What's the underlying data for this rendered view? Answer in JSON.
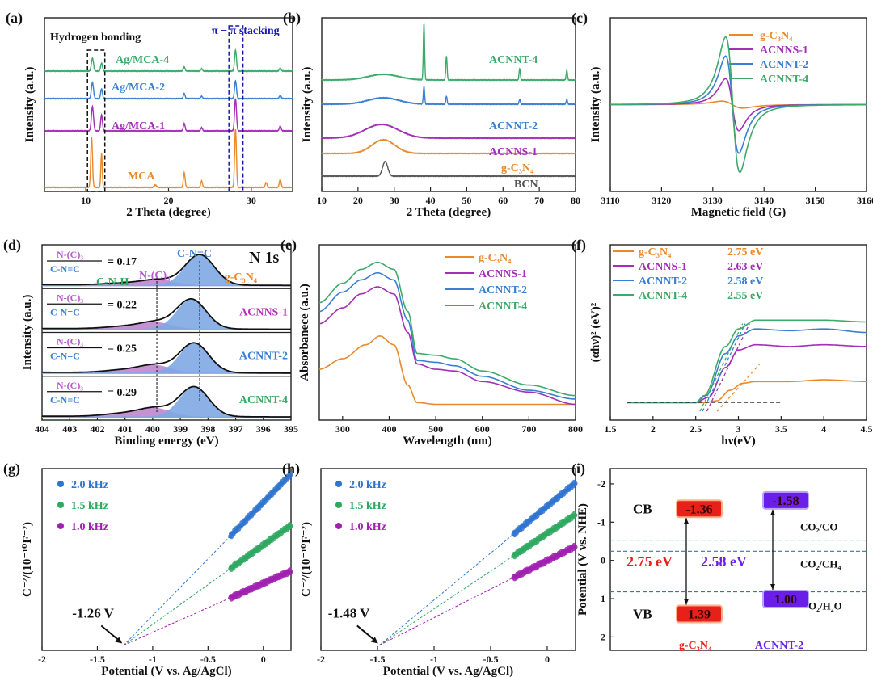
{
  "chart_data": [
    {
      "id": "a",
      "type": "line",
      "panel_label": "(a)",
      "xlabel": "2 Theta (degree)",
      "ylabel": "Intensity (a.u.)",
      "xlim": [
        5,
        35
      ],
      "ylim": [
        -5,
        210
      ],
      "xticks": [
        10,
        20,
        30
      ],
      "annotations": {
        "hbond": "Hydrogen bonding",
        "stacking": "π − π stacking"
      },
      "series": [
        {
          "name": "MCA",
          "color": "#e8892b",
          "offset": 0,
          "peaks": [
            [
              10.7,
              62,
              0.15
            ],
            [
              11.9,
              42,
              0.12
            ],
            [
              18.4,
              3,
              0.2
            ],
            [
              21.9,
              18,
              0.15
            ],
            [
              24.0,
              8,
              0.15
            ],
            [
              28.1,
              72,
              0.15
            ],
            [
              31.8,
              6,
              0.15
            ],
            [
              33.5,
              10,
              0.15
            ]
          ]
        },
        {
          "name": "Ag/MCA-1",
          "color": "#a22fb5",
          "offset": 70,
          "peaks": [
            [
              10.8,
              30,
              0.18
            ],
            [
              11.9,
              20,
              0.15
            ],
            [
              21.9,
              9,
              0.15
            ],
            [
              24.0,
              4,
              0.15
            ],
            [
              28.1,
              40,
              0.16
            ],
            [
              33.5,
              6,
              0.15
            ]
          ]
        },
        {
          "name": "Ag/MCA-2",
          "color": "#3a7fd0",
          "offset": 110,
          "peaks": [
            [
              10.8,
              20,
              0.18
            ],
            [
              11.9,
              12,
              0.15
            ],
            [
              21.9,
              6,
              0.15
            ],
            [
              24.0,
              3,
              0.15
            ],
            [
              28.1,
              22,
              0.16
            ],
            [
              33.5,
              4,
              0.15
            ]
          ]
        },
        {
          "name": "Ag/MCA-4",
          "color": "#3daa6a",
          "offset": 144,
          "peaks": [
            [
              10.8,
              16,
              0.18
            ],
            [
              11.9,
              10,
              0.15
            ],
            [
              21.9,
              5,
              0.15
            ],
            [
              24.0,
              3,
              0.15
            ],
            [
              28.1,
              26,
              0.16
            ],
            [
              33.5,
              4,
              0.15
            ]
          ]
        }
      ]
    },
    {
      "id": "b",
      "type": "line",
      "panel_label": "(b)",
      "xlabel": "2 Theta (degree)",
      "ylabel": "Intensity (a.u.)",
      "xlim": [
        10,
        80
      ],
      "ylim": [
        0,
        215
      ],
      "xticks": [
        10,
        20,
        30,
        40,
        50,
        60,
        70,
        80
      ],
      "series": [
        {
          "name": "BCN",
          "color": "#555555",
          "offset": 19,
          "peaks": [
            [
              27.5,
              18,
              1.0
            ]
          ]
        },
        {
          "name": "g-C₃N₄",
          "color": "#e8892b",
          "offset": 47,
          "peaks": [
            [
              27.0,
              17,
              4.5
            ]
          ]
        },
        {
          "name": "ACNNS-1",
          "color": "#a22fb5",
          "offset": 66,
          "peaks": [
            [
              26.5,
              17,
              6.5
            ]
          ]
        },
        {
          "name": "ACNNT-2",
          "color": "#3a7fd0",
          "offset": 108,
          "peaks": [
            [
              27,
              8,
              6
            ],
            [
              38.2,
              22,
              0.25
            ],
            [
              44.4,
              10,
              0.25
            ],
            [
              64.6,
              6,
              0.25
            ],
            [
              77.6,
              6,
              0.25
            ]
          ]
        },
        {
          "name": "ACNNT-4",
          "color": "#3daa6a",
          "offset": 138,
          "peaks": [
            [
              27,
              7,
              6
            ],
            [
              38.2,
              70,
              0.25
            ],
            [
              44.4,
              30,
              0.25
            ],
            [
              64.6,
              14,
              0.25
            ],
            [
              77.6,
              12,
              0.25
            ]
          ]
        }
      ]
    },
    {
      "id": "c",
      "type": "line",
      "panel_label": "(c)",
      "xlabel": "Magnetic field (G)",
      "ylabel": "Intensity (a.u.)",
      "xlim": [
        3110,
        3160
      ],
      "ylim": [
        -1,
        1
      ],
      "xticks": [
        3110,
        3120,
        3130,
        3140,
        3150,
        3160
      ],
      "series": [
        {
          "name": "g-C₃N₄",
          "color": "#e8892b",
          "center": 3133.8,
          "width": 3.5,
          "amp": 0.04
        },
        {
          "name": "ACNNS-1",
          "color": "#a22fb5",
          "center": 3133.8,
          "width": 2.25,
          "amp": 0.3
        },
        {
          "name": "ACNNT-2",
          "color": "#3a7fd0",
          "center": 3133.8,
          "width": 2.25,
          "amp": 0.56
        },
        {
          "name": "ACNNT-4",
          "color": "#3daa6a",
          "center": 3133.9,
          "width": 2.4,
          "amp": 0.78
        }
      ]
    },
    {
      "id": "d",
      "type": "area",
      "panel_label": "(d)",
      "xlabel": "Binding energy (eV)",
      "ylabel": "Intensity (a.u.)",
      "xlim": [
        404,
        395
      ],
      "ylim": [
        0,
        1
      ],
      "xticks": [
        404,
        403,
        402,
        401,
        400,
        399,
        398,
        397,
        396,
        395
      ],
      "title": "N 1s",
      "annotations": {
        "cnc": "C-N=C",
        "cnh": "C-N-H",
        "nc3": "N-(C)₃"
      },
      "fill_colors": {
        "main": "#7ea9e3",
        "minor": "#b777c9"
      },
      "series": [
        {
          "name": "g-C₃N₄",
          "color": "#e8892b",
          "numerator": "N-(C)₃",
          "denominator": "C-N=C",
          "ratio": "= 0.17",
          "main": [
            398.3,
            0.78,
            0.75
          ],
          "nc3": [
            399.8,
            0.13,
            0.8
          ],
          "cnh": [
            401.0,
            0.05,
            1.0
          ]
        },
        {
          "name": "ACNNS-1",
          "color": "#b52fb5",
          "numerator": "N-(C)₃",
          "denominator": "C-N=C",
          "ratio": "= 0.22",
          "main": [
            398.6,
            0.76,
            0.75
          ],
          "nc3": [
            399.9,
            0.16,
            0.8
          ],
          "cnh": [
            401.0,
            0.06,
            1.0
          ]
        },
        {
          "name": "ACNNT-2",
          "color": "#3a7fd0",
          "numerator": "N-(C)₃",
          "denominator": "C-N=C",
          "ratio": "= 0.25",
          "main": [
            398.5,
            0.76,
            0.75
          ],
          "nc3": [
            399.9,
            0.18,
            0.8
          ],
          "cnh": [
            401.0,
            0.07,
            1.0
          ]
        },
        {
          "name": "ACNNT-4",
          "color": "#3daa6a",
          "numerator": "N-(C)₃",
          "denominator": "C-N=C",
          "ratio": "= 0.29",
          "main": [
            398.5,
            0.76,
            0.75
          ],
          "nc3": [
            399.9,
            0.2,
            0.8
          ],
          "cnh": [
            401.0,
            0.08,
            1.0
          ]
        }
      ]
    },
    {
      "id": "e",
      "type": "line",
      "panel_label": "(e)",
      "xlabel": "Wavelength (nm)",
      "ylabel": "Absorbanece (a.u.)",
      "xlim": [
        250,
        800
      ],
      "ylim": [
        0,
        1
      ],
      "xticks": [
        300,
        400,
        500,
        600,
        700,
        800
      ],
      "series": [
        {
          "name": "g-C₃N₄",
          "color": "#e8892b",
          "points": [
            [
              250,
              0.29
            ],
            [
              300,
              0.35
            ],
            [
              350,
              0.43
            ],
            [
              380,
              0.48
            ],
            [
              410,
              0.43
            ],
            [
              440,
              0.2
            ],
            [
              460,
              0.1
            ],
            [
              500,
              0.09
            ],
            [
              600,
              0.09
            ],
            [
              800,
              0.09
            ]
          ]
        },
        {
          "name": "ACNNS-1",
          "color": "#a22fb5",
          "points": [
            [
              250,
              0.55
            ],
            [
              300,
              0.64
            ],
            [
              340,
              0.72
            ],
            [
              375,
              0.76
            ],
            [
              410,
              0.72
            ],
            [
              440,
              0.5
            ],
            [
              460,
              0.32
            ],
            [
              500,
              0.29
            ],
            [
              540,
              0.28
            ],
            [
              600,
              0.22
            ],
            [
              700,
              0.16
            ],
            [
              800,
              0.09
            ]
          ]
        },
        {
          "name": "ACNNT-2",
          "color": "#3a7fd0",
          "points": [
            [
              250,
              0.62
            ],
            [
              300,
              0.73
            ],
            [
              340,
              0.8
            ],
            [
              375,
              0.84
            ],
            [
              410,
              0.8
            ],
            [
              440,
              0.57
            ],
            [
              460,
              0.34
            ],
            [
              500,
              0.33
            ],
            [
              540,
              0.31
            ],
            [
              600,
              0.25
            ],
            [
              700,
              0.17
            ],
            [
              800,
              0.12
            ]
          ]
        },
        {
          "name": "ACNNT-4",
          "color": "#3daa6a",
          "points": [
            [
              250,
              0.67
            ],
            [
              300,
              0.78
            ],
            [
              340,
              0.86
            ],
            [
              375,
              0.9
            ],
            [
              410,
              0.86
            ],
            [
              440,
              0.62
            ],
            [
              460,
              0.38
            ],
            [
              500,
              0.37
            ],
            [
              540,
              0.35
            ],
            [
              600,
              0.28
            ],
            [
              700,
              0.2
            ],
            [
              800,
              0.14
            ]
          ]
        }
      ]
    },
    {
      "id": "f",
      "type": "line",
      "panel_label": "(f)",
      "xlabel": "hν(eV)",
      "ylabel": "(αhν)² (eV)²",
      "xlim": [
        1.5,
        4.5
      ],
      "ylim": [
        0,
        1
      ],
      "xticks": [
        1.5,
        2.0,
        2.5,
        3.0,
        3.5,
        4.0,
        4.5
      ],
      "series": [
        {
          "name": "g-C₃N₄",
          "bandgap": "2.75 eV",
          "eg": 2.75,
          "color": "#e8892b",
          "points": [
            [
              1.7,
              0.1
            ],
            [
              2.6,
              0.1
            ],
            [
              2.75,
              0.11
            ],
            [
              2.9,
              0.17
            ],
            [
              3.05,
              0.21
            ],
            [
              3.2,
              0.22
            ],
            [
              3.6,
              0.22
            ],
            [
              4.0,
              0.23
            ],
            [
              4.5,
              0.22
            ]
          ]
        },
        {
          "name": "ACNNS-1",
          "bandgap": "2.63 eV",
          "eg": 2.63,
          "color": "#a22fb5",
          "points": [
            [
              1.7,
              0.1
            ],
            [
              2.5,
              0.1
            ],
            [
              2.65,
              0.13
            ],
            [
              2.85,
              0.3
            ],
            [
              3.0,
              0.4
            ],
            [
              3.2,
              0.43
            ],
            [
              3.6,
              0.42
            ],
            [
              4.0,
              0.43
            ],
            [
              4.5,
              0.42
            ]
          ]
        },
        {
          "name": "ACNNT-2",
          "bandgap": "2.58 eV",
          "eg": 2.58,
          "color": "#3a7fd0",
          "points": [
            [
              1.7,
              0.1
            ],
            [
              2.5,
              0.1
            ],
            [
              2.62,
              0.14
            ],
            [
              2.85,
              0.38
            ],
            [
              3.0,
              0.48
            ],
            [
              3.2,
              0.52
            ],
            [
              3.6,
              0.51
            ],
            [
              4.0,
              0.52
            ],
            [
              4.5,
              0.5
            ]
          ]
        },
        {
          "name": "ACNNT-4",
          "bandgap": "2.55 eV",
          "eg": 2.55,
          "color": "#3daa6a",
          "points": [
            [
              1.7,
              0.1
            ],
            [
              2.5,
              0.1
            ],
            [
              2.6,
              0.14
            ],
            [
              2.85,
              0.42
            ],
            [
              3.0,
              0.52
            ],
            [
              3.2,
              0.57
            ],
            [
              3.6,
              0.57
            ],
            [
              4.0,
              0.57
            ],
            [
              4.5,
              0.56
            ]
          ]
        }
      ]
    },
    {
      "id": "g",
      "type": "scatter",
      "panel_label": "(g)",
      "xlabel": "Potential (V vs. Ag/AgCl)",
      "ylabel": "C⁻²/(10⁻¹⁰F⁻²)",
      "xlim": [
        -2.0,
        0.25
      ],
      "ylim": [
        -0.03,
        1
      ],
      "xticks": [
        -2.0,
        -1.5,
        -1.0,
        -0.5,
        0.0
      ],
      "intercept": -1.26,
      "intercept_label": "-1.26 V",
      "series": [
        {
          "name": "2.0 kHz",
          "color": "#2f74d0",
          "end": 0.97
        },
        {
          "name": "1.5 kHz",
          "color": "#2fa860",
          "end": 0.68
        },
        {
          "name": "1.0 kHz",
          "color": "#a020b0",
          "end": 0.42
        }
      ]
    },
    {
      "id": "h",
      "type": "scatter",
      "panel_label": "(h)",
      "xlabel": "Potential (V vs. Ag/AgCl)",
      "ylabel": "C⁻²/(10⁻¹⁰F⁻²)",
      "xlim": [
        -2.0,
        0.25
      ],
      "ylim": [
        -0.03,
        1
      ],
      "xticks": [
        -2.0,
        -1.5,
        -1.0,
        -0.5,
        0.0
      ],
      "intercept": -1.48,
      "intercept_label": "-1.48 V",
      "series": [
        {
          "name": "2.0 kHz",
          "color": "#2f74d0",
          "end": 0.92
        },
        {
          "name": "1.5 kHz",
          "color": "#2fa860",
          "end": 0.74
        },
        {
          "name": "1.0 kHz",
          "color": "#a020b0",
          "end": 0.56
        }
      ]
    },
    {
      "id": "i",
      "type": "bar",
      "panel_label": "(i)",
      "xlabel": "",
      "ylabel": "Potential (V vs. NHE)",
      "ylim": [
        2.35,
        -2.4
      ],
      "yticks": [
        -2,
        -1,
        0,
        1,
        2
      ],
      "band_labels": {
        "cb": "CB",
        "vb": "VB"
      },
      "redox": [
        {
          "name": "CO₂/CO",
          "potential": -0.53
        },
        {
          "name": "CO₂/CH₄",
          "potential": -0.24
        },
        {
          "name": "O₂/H₂O",
          "potential": 0.82
        }
      ],
      "series": [
        {
          "name": "g-C₃N₄",
          "color": "#e8201a",
          "cb": -1.36,
          "vb": 1.39,
          "cb_label": "-1.36",
          "vb_label": "1.39",
          "gap_label": "2.75 eV"
        },
        {
          "name": "ACNNT-2",
          "color": "#6a1ee8",
          "cb": -1.58,
          "vb": 1.0,
          "cb_label": "-1.58",
          "vb_label": "1.00",
          "gap_label": "2.58 eV"
        }
      ]
    }
  ]
}
